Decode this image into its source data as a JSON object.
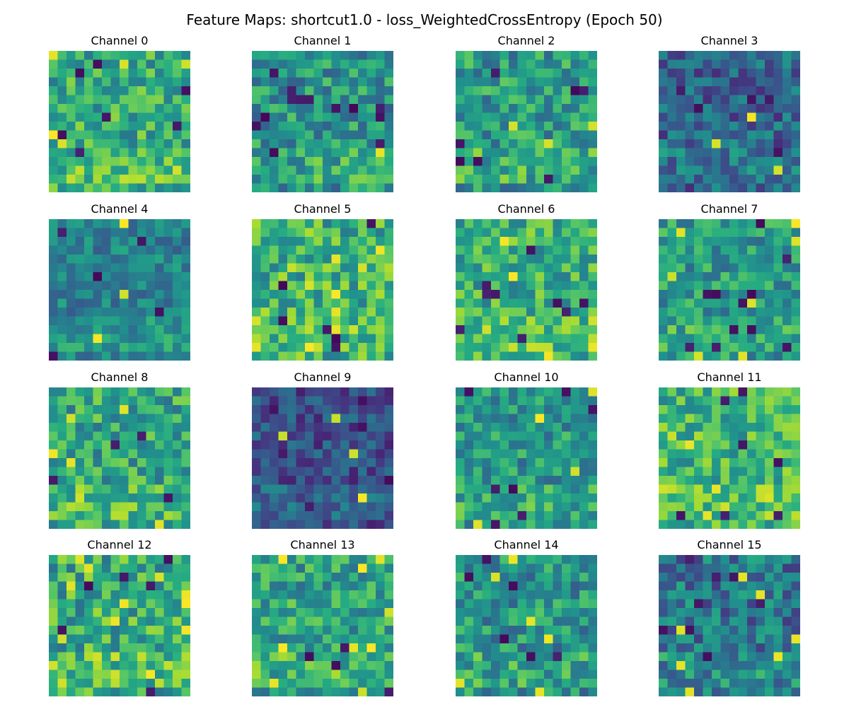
{
  "figure": {
    "title": "Feature Maps: shortcut1.0 - loss_WeightedCrossEntropy (Epoch 50)"
  },
  "chart_data": {
    "type": "heatmap",
    "colormap": "viridis",
    "grid": false,
    "axes_visible": false,
    "resolution": [
      16,
      16
    ],
    "panels": [
      {
        "label": "Channel 0"
      },
      {
        "label": "Channel 1"
      },
      {
        "label": "Channel 2"
      },
      {
        "label": "Channel 3"
      },
      {
        "label": "Channel 4"
      },
      {
        "label": "Channel 5"
      },
      {
        "label": "Channel 6"
      },
      {
        "label": "Channel 7"
      },
      {
        "label": "Channel 8"
      },
      {
        "label": "Channel 9"
      },
      {
        "label": "Channel 10"
      },
      {
        "label": "Channel 11"
      },
      {
        "label": "Channel 12"
      },
      {
        "label": "Channel 13"
      },
      {
        "label": "Channel 14"
      },
      {
        "label": "Channel 15"
      }
    ]
  }
}
